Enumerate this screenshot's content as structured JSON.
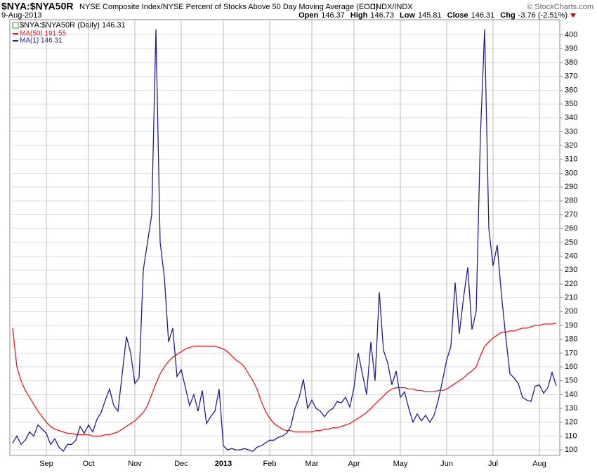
{
  "chart_data": {
    "type": "line",
    "title": "$NYA:$NYA50R",
    "subtitle": "NYSE Composite Index/NYSE Percent of Stocks Above 50 Day Moving Average (EOD)",
    "exchange": "INDX/INDX",
    "date": "9-Aug-2013",
    "stats": [
      [
        "Open",
        "146.37"
      ],
      [
        "High",
        "146.73"
      ],
      [
        "Low",
        "145.81"
      ],
      [
        "Close",
        "146.31"
      ],
      [
        "Chg",
        "-3.76 (-2.51%)"
      ]
    ],
    "credit": "© StockCharts.com",
    "legend_header": "$NYA:$NYA50R (Daily) 146.31",
    "categories": [
      null,
      null,
      null,
      null,
      null,
      null,
      null,
      null,
      "Sep",
      null,
      null,
      null,
      null,
      null,
      null,
      null,
      null,
      null,
      "Oct",
      null,
      null,
      null,
      null,
      null,
      null,
      null,
      null,
      null,
      null,
      "Nov",
      null,
      null,
      null,
      null,
      null,
      null,
      null,
      null,
      null,
      null,
      "Dec",
      null,
      null,
      null,
      null,
      null,
      null,
      null,
      null,
      null,
      "2013",
      null,
      null,
      null,
      null,
      null,
      null,
      null,
      null,
      null,
      null,
      "Feb",
      null,
      null,
      null,
      null,
      null,
      null,
      null,
      null,
      null,
      "Mar",
      null,
      null,
      null,
      null,
      null,
      null,
      null,
      null,
      null,
      "Apr",
      null,
      null,
      null,
      null,
      null,
      null,
      null,
      null,
      null,
      null,
      "May",
      null,
      null,
      null,
      null,
      null,
      null,
      null,
      null,
      null,
      null,
      "Jun",
      null,
      null,
      null,
      null,
      null,
      null,
      null,
      null,
      null,
      null,
      "Jul",
      null,
      null,
      null,
      null,
      null,
      null,
      null,
      null,
      null,
      null,
      "Aug",
      null,
      null,
      null,
      null
    ],
    "series": [
      {
        "name": "MA(50) 191.55",
        "color": "#e8191f",
        "values": [
          188,
          160,
          150,
          143,
          138,
          133,
          128,
          124,
          120,
          117,
          115,
          114,
          113,
          112,
          112,
          111,
          111,
          111,
          111,
          110,
          110,
          110,
          111,
          111,
          112,
          113,
          115,
          117,
          119,
          121,
          124,
          127,
          132,
          140,
          148,
          155,
          160,
          164,
          167,
          169,
          171,
          173,
          174,
          175,
          175,
          175,
          175,
          175,
          175,
          174,
          173,
          171,
          168,
          165,
          163,
          160,
          155,
          150,
          144,
          135,
          128,
          123,
          119,
          117,
          115,
          114,
          114,
          113,
          113,
          113,
          113,
          113,
          114,
          114,
          115,
          115,
          116,
          116,
          117,
          118,
          119,
          121,
          123,
          125,
          127,
          130,
          133,
          136,
          139,
          142,
          144,
          145,
          145,
          145,
          144,
          144,
          143,
          143,
          142,
          142,
          142,
          143,
          143,
          144,
          146,
          148,
          150,
          152,
          155,
          157,
          160,
          168,
          175,
          178,
          181,
          183,
          185,
          185,
          186,
          186,
          187,
          188,
          188,
          189,
          190,
          190,
          191,
          191,
          191,
          191.55
        ]
      },
      {
        "name": "MA(1) 146.31",
        "color": "#1f1f8f",
        "values": [
          105,
          110,
          104,
          107,
          113,
          110,
          118,
          115,
          112,
          104,
          108,
          102,
          99,
          104,
          104,
          107,
          117,
          112,
          118,
          113,
          122,
          127,
          136,
          144,
          132,
          128,
          155,
          182,
          170,
          148,
          152,
          230,
          250,
          270,
          404,
          250,
          225,
          178,
          188,
          153,
          158,
          145,
          132,
          140,
          128,
          143,
          119,
          124,
          128,
          144,
          103,
          100,
          101,
          100,
          100,
          101,
          100,
          99,
          102,
          103,
          105,
          107,
          107,
          109,
          110,
          112,
          117,
          130,
          138,
          151,
          130,
          136,
          130,
          128,
          124,
          128,
          130,
          135,
          134,
          138,
          131,
          145,
          170,
          155,
          140,
          178,
          150,
          214,
          172,
          163,
          147,
          157,
          138,
          142,
          130,
          120,
          126,
          121,
          125,
          120,
          125,
          136,
          150,
          165,
          175,
          221,
          184,
          210,
          232,
          187,
          200,
          327,
          404,
          260,
          233,
          248,
          212,
          182,
          155,
          152,
          148,
          138,
          136,
          135,
          146,
          147,
          141,
          145,
          156,
          146.31
        ]
      }
    ],
    "ylim": [
      96,
      411
    ],
    "yticks": [
      100,
      110,
      120,
      130,
      140,
      150,
      160,
      170,
      180,
      190,
      200,
      210,
      220,
      230,
      240,
      250,
      260,
      270,
      280,
      290,
      300,
      310,
      320,
      330,
      340,
      350,
      360,
      370,
      380,
      390,
      400
    ],
    "grid": true
  }
}
